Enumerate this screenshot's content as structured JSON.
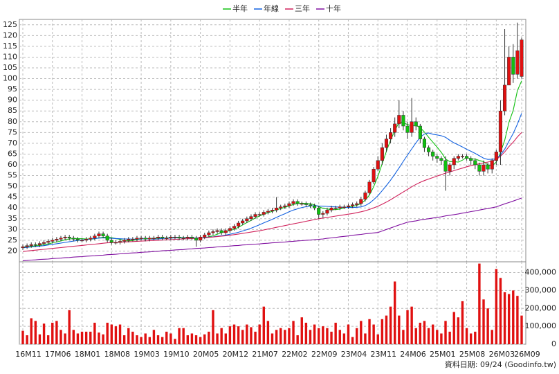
{
  "chart_data": [
    {
      "type": "candlestick",
      "up_color": "#e01010",
      "down_color": "#10c010",
      "ylim": [
        15,
        127.5
      ],
      "yticks": [
        20,
        25,
        30,
        35,
        40,
        45,
        50,
        55,
        60,
        65,
        70,
        75,
        80,
        85,
        90,
        95,
        100,
        105,
        110,
        115,
        120,
        125
      ],
      "grid": true,
      "open": [
        21.5,
        22,
        22.5,
        23,
        22.8,
        23.5,
        24,
        24.5,
        25,
        25.5,
        26,
        26.5,
        26,
        25.5,
        25,
        25,
        25.5,
        26,
        27,
        28,
        27,
        25,
        24,
        24,
        24.5,
        25,
        25.5,
        25.5,
        26,
        26,
        25.5,
        26,
        26,
        26.5,
        26,
        26,
        26.5,
        26.5,
        26,
        26,
        26.5,
        26,
        25,
        26.5,
        27.5,
        28.5,
        29,
        29.5,
        28.5,
        29.5,
        30.5,
        31.5,
        33,
        34,
        35,
        36,
        37,
        37,
        38,
        38.5,
        39,
        40,
        40.5,
        41,
        42,
        43,
        42,
        42,
        41.5,
        41,
        40,
        37,
        37.5,
        39,
        40,
        40,
        40.5,
        40.5,
        41,
        41.5,
        42,
        44,
        47,
        52,
        58,
        62,
        68,
        72,
        75,
        79,
        83,
        78,
        75,
        80,
        78,
        72,
        68,
        66,
        64,
        63,
        62,
        57,
        60,
        63,
        64,
        64,
        63,
        62,
        60,
        57,
        60,
        58,
        62,
        66,
        85,
        97,
        110,
        102,
        101
      ],
      "high": [
        23,
        23.5,
        24,
        24,
        24.5,
        25,
        25.5,
        26,
        26.5,
        27,
        27.5,
        27.5,
        27,
        26.5,
        26,
        26.5,
        27,
        28,
        29,
        29,
        28,
        26,
        25,
        25.5,
        26,
        26.5,
        26.5,
        27,
        27,
        27,
        27,
        27,
        27.5,
        27.5,
        27,
        27.5,
        27.5,
        27.5,
        27,
        27.5,
        27.5,
        27,
        27.5,
        28.5,
        29.5,
        30,
        30.5,
        30.5,
        30.5,
        31.5,
        32.5,
        34,
        35,
        36,
        37,
        38,
        38,
        39,
        39.5,
        40,
        45,
        41.5,
        42,
        43,
        44,
        44,
        43,
        43,
        42.5,
        42,
        41,
        38.5,
        40,
        41,
        41,
        41.5,
        41.5,
        42,
        42.5,
        43,
        45,
        48,
        53,
        59,
        64,
        70,
        74,
        77,
        82,
        90,
        85,
        80,
        91,
        82,
        79,
        73,
        69,
        67,
        65,
        64,
        64,
        61,
        64,
        65,
        65,
        65,
        64,
        63,
        61,
        62,
        61,
        63,
        67,
        90,
        123,
        115,
        116,
        126,
        119
      ],
      "low": [
        20.5,
        21,
        21.5,
        21.8,
        21.8,
        22.5,
        23,
        23.5,
        24,
        24.5,
        25,
        25,
        24.5,
        24,
        24,
        24,
        24.5,
        25,
        26,
        26,
        24,
        23,
        23,
        23,
        23.5,
        24,
        24.5,
        24.5,
        25,
        24.5,
        24.5,
        25,
        25,
        25,
        25,
        25,
        25.5,
        25,
        25,
        25,
        25,
        22,
        24,
        25.5,
        26.5,
        27.5,
        28,
        27.5,
        27.5,
        28.5,
        29.5,
        30.5,
        32,
        33,
        34,
        35,
        36,
        36,
        37,
        37.5,
        38,
        39,
        39.5,
        40,
        41,
        41,
        41,
        40.5,
        40,
        39,
        35,
        35.5,
        36.5,
        38,
        39,
        39,
        39.5,
        39.5,
        40,
        40.5,
        41,
        43,
        46,
        51,
        57,
        60,
        66,
        70,
        73,
        77,
        76,
        72,
        73,
        76,
        70,
        66,
        64,
        62,
        61,
        60,
        48,
        55,
        58,
        62,
        63,
        62,
        60,
        58,
        55,
        55,
        56,
        56,
        60,
        60,
        83,
        97,
        98,
        100,
        100
      ],
      "close": [
        22,
        22.5,
        23,
        22.8,
        23.5,
        24,
        24.5,
        25,
        25.5,
        26,
        26.5,
        26,
        25.5,
        25,
        25,
        25.5,
        26,
        27,
        28,
        27,
        25,
        24,
        24,
        24.5,
        25,
        25.5,
        25.5,
        26,
        26,
        25.5,
        26,
        26,
        26.5,
        26,
        26,
        26.5,
        26.5,
        26,
        26,
        26.5,
        26,
        25,
        26.5,
        27.5,
        28.5,
        29,
        29.5,
        28.5,
        29.5,
        30.5,
        31.5,
        33,
        34,
        35,
        36,
        37,
        37,
        38,
        38.5,
        39,
        40,
        40.5,
        41,
        42,
        43,
        42,
        42,
        41.5,
        41,
        40,
        37,
        37.5,
        39,
        40,
        40,
        40.5,
        40.5,
        41,
        41.5,
        42,
        44,
        47,
        52,
        58,
        62,
        68,
        72,
        75,
        79,
        83,
        78,
        75,
        80,
        78,
        72,
        68,
        66,
        64,
        63,
        62,
        57,
        60,
        63,
        64,
        64,
        63,
        62,
        60,
        57,
        60,
        58,
        62,
        66,
        85,
        97,
        110,
        102,
        113,
        118
      ],
      "series": [
        {
          "name": "半年",
          "color": "#10c010",
          "values": [
            21.8,
            22,
            22.2,
            22.4,
            22.6,
            23,
            23.3,
            23.8,
            24.2,
            24.7,
            25.2,
            25.6,
            25.8,
            25.8,
            25.7,
            25.6,
            25.5,
            25.7,
            26.1,
            26.4,
            26.4,
            26.2,
            25.8,
            25.4,
            24.8,
            24.7,
            24.9,
            25.3,
            25.6,
            25.7,
            25.8,
            25.9,
            26,
            26,
            26.1,
            26.2,
            26.3,
            26.3,
            26.2,
            26.3,
            26.2,
            26,
            26,
            26.2,
            26.6,
            27.1,
            27.8,
            28.6,
            29,
            29.5,
            30.1,
            31,
            32.1,
            33.2,
            34.2,
            35.3,
            36.3,
            37.1,
            37.8,
            38.4,
            39.1,
            39.7,
            40.3,
            40.9,
            41.6,
            42,
            42.2,
            42.1,
            42,
            41.4,
            40.6,
            39.8,
            39.5,
            39.2,
            39.2,
            39.5,
            40,
            40.4,
            40.7,
            41.2,
            42,
            43.6,
            46,
            49.8,
            54.7,
            60.5,
            66.3,
            71.5,
            75.8,
            79.8,
            79.5,
            78.7,
            78.2,
            78.3,
            77.3,
            75.2,
            72.8,
            70.5,
            68.2,
            65.8,
            62.7,
            61.5,
            61.5,
            61.3,
            62.2,
            63.5,
            62.7,
            62.7,
            62,
            61.5,
            60,
            59.5,
            61.3,
            65.7,
            71.5,
            79.8,
            85.3,
            94.5,
            99
          ]
        },
        {
          "name": "年線",
          "color": "#1060e0",
          "values": [
            21.5,
            21.7,
            21.9,
            22.1,
            22.3,
            22.5,
            22.8,
            23.1,
            23.4,
            23.7,
            24,
            24.3,
            24.6,
            24.9,
            25.1,
            25.3,
            25.6,
            25.8,
            26,
            26.1,
            26,
            25.9,
            25.8,
            25.7,
            25.6,
            25.6,
            25.5,
            25.5,
            25.6,
            25.7,
            25.6,
            25.5,
            25.6,
            25.8,
            26,
            26,
            26.1,
            26.1,
            26.1,
            26.1,
            26.1,
            26.1,
            26.1,
            26.2,
            26.4,
            26.6,
            26.9,
            27.1,
            27.4,
            27.8,
            28.2,
            28.7,
            29.3,
            29.9,
            30.6,
            31.4,
            32.2,
            33.1,
            33.9,
            34.7,
            35.6,
            36.5,
            37.3,
            38.2,
            39,
            39.6,
            40.2,
            40.6,
            40.9,
            41.1,
            40.9,
            40.8,
            40.7,
            40.6,
            40.5,
            40.4,
            40.2,
            40.2,
            40.2,
            40.3,
            40.5,
            41.1,
            42.2,
            43.8,
            45.7,
            48,
            50.4,
            52.9,
            55.7,
            58.6,
            61.6,
            64.5,
            67.4,
            70.2,
            72.8,
            74.3,
            74.8,
            74.2,
            73.9,
            73.5,
            72.8,
            71.4,
            70.2,
            69.3,
            68.3,
            67.2,
            66.3,
            65.3,
            64.2,
            63.1,
            62.5,
            62.6,
            62.8,
            64.6,
            67.3,
            71,
            74.6,
            78.9,
            83.9
          ]
        },
        {
          "name": "三年",
          "color": "#d0205a",
          "values": [
            19.8,
            20,
            20.2,
            20.4,
            20.6,
            20.8,
            21,
            21.2,
            21.4,
            21.6,
            21.8,
            22,
            22.2,
            22.4,
            22.6,
            22.8,
            23,
            23.2,
            23.4,
            23.6,
            23.8,
            23.9,
            24,
            24.1,
            24.2,
            24.3,
            24.4,
            24.5,
            24.6,
            24.7,
            24.8,
            24.9,
            25,
            25.1,
            25.2,
            25.3,
            25.4,
            25.5,
            25.6,
            25.7,
            25.8,
            25.9,
            26,
            26.1,
            26.3,
            26.5,
            26.7,
            26.9,
            27.1,
            27.3,
            27.6,
            27.9,
            28.2,
            28.5,
            28.8,
            29.1,
            29.4,
            29.8,
            30.2,
            30.6,
            31,
            31.4,
            31.8,
            32.2,
            32.6,
            33,
            33.4,
            33.8,
            34.2,
            34.6,
            35,
            35.3,
            35.6,
            35.9,
            36.2,
            36.5,
            36.8,
            37.1,
            37.4,
            37.8,
            38.2,
            38.7,
            39.3,
            40,
            40.8,
            41.7,
            42.7,
            43.8,
            45,
            46.2,
            47.4,
            48.6,
            49.8,
            50.9,
            51.9,
            52.7,
            53.4,
            54.1,
            54.8,
            55.5,
            56.1,
            56.7,
            57.3,
            57.9,
            58.5,
            59.1,
            59.6,
            60.1,
            60.5,
            60.9,
            61.3,
            61.8,
            62.5,
            64,
            66,
            68.5,
            70.5,
            73,
            75
          ]
        },
        {
          "name": "十年",
          "color": "#8010a0",
          "values": [
            15.5,
            15.6,
            15.8,
            15.9,
            16.1,
            16.2,
            16.3,
            16.5,
            16.6,
            16.7,
            16.9,
            17,
            17.2,
            17.3,
            17.4,
            17.6,
            17.7,
            17.8,
            18,
            18.1,
            18.3,
            18.4,
            18.5,
            18.7,
            18.8,
            19,
            19.1,
            19.2,
            19.4,
            19.5,
            19.6,
            19.8,
            19.9,
            20.1,
            20.2,
            20.3,
            20.5,
            20.6,
            20.7,
            20.9,
            21,
            21.2,
            21.3,
            21.4,
            21.6,
            21.7,
            21.9,
            22,
            22.2,
            22.3,
            22.5,
            22.6,
            22.8,
            22.9,
            23.1,
            23.2,
            23.3,
            23.5,
            23.6,
            23.8,
            23.9,
            24.1,
            24.2,
            24.4,
            24.5,
            24.7,
            24.8,
            25,
            25.1,
            25.3,
            25.4,
            25.6,
            25.9,
            26.1,
            26.3,
            26.6,
            26.8,
            27,
            27.3,
            27.5,
            27.7,
            28,
            28.2,
            28.4,
            28.6,
            29.3,
            30,
            30.7,
            31.4,
            32.1,
            32.7,
            33.4,
            33.7,
            34,
            34.4,
            34.7,
            35,
            35.3,
            35.6,
            35.9,
            36.3,
            36.6,
            36.9,
            37.2,
            37.6,
            37.9,
            38.3,
            38.6,
            39,
            39.4,
            39.7,
            40.1,
            40.5,
            41.2,
            41.9,
            42.5,
            43.2,
            43.9,
            44.6
          ]
        }
      ]
    },
    {
      "type": "bar",
      "color": "#e01010",
      "ylim": [
        0,
        460000
      ],
      "yticks": [
        0,
        {
          "value": 100000,
          "label": "100,000"
        },
        {
          "value": 200000,
          "label": "200,000"
        },
        {
          "value": 300000,
          "label": "300,000"
        },
        {
          "value": 400000,
          "label": "400,000"
        }
      ],
      "grid": true,
      "categories": [
        "16M11",
        null,
        null,
        null,
        null,
        null,
        null,
        "17M06",
        null,
        null,
        null,
        null,
        null,
        null,
        "18M01",
        null,
        null,
        null,
        null,
        null,
        null,
        "18M08",
        null,
        null,
        null,
        null,
        null,
        null,
        "19M03",
        null,
        null,
        null,
        null,
        null,
        null,
        "19M10",
        null,
        null,
        null,
        null,
        null,
        null,
        "20M05",
        null,
        null,
        null,
        null,
        null,
        null,
        "20M12",
        null,
        null,
        null,
        null,
        null,
        null,
        "21M07",
        null,
        null,
        null,
        null,
        null,
        null,
        "22M02",
        null,
        null,
        null,
        null,
        null,
        null,
        "22M09",
        null,
        null,
        null,
        null,
        null,
        null,
        "23M04",
        null,
        null,
        null,
        null,
        null,
        null,
        "23M11",
        null,
        null,
        null,
        null,
        null,
        null,
        "24M06",
        null,
        null,
        null,
        null,
        null,
        null,
        "25M01",
        null,
        null,
        null,
        null,
        null,
        null,
        "25M08",
        null,
        null,
        null,
        null,
        null,
        null,
        "26M03",
        null,
        null,
        null,
        null,
        null,
        "26M09"
      ],
      "values": [
        75000,
        50000,
        145000,
        130000,
        55000,
        115000,
        50000,
        120000,
        130000,
        80000,
        60000,
        190000,
        80000,
        60000,
        70000,
        70000,
        70000,
        120000,
        65000,
        55000,
        120000,
        110000,
        100000,
        110000,
        50000,
        90000,
        70000,
        50000,
        40000,
        60000,
        40000,
        80000,
        50000,
        40000,
        70000,
        60000,
        30000,
        90000,
        90000,
        50000,
        60000,
        50000,
        40000,
        55000,
        70000,
        190000,
        60000,
        90000,
        60000,
        100000,
        110000,
        100000,
        80000,
        110000,
        95000,
        70000,
        110000,
        210000,
        130000,
        60000,
        80000,
        90000,
        80000,
        90000,
        130000,
        50000,
        150000,
        120000,
        80000,
        110000,
        90000,
        100000,
        90000,
        70000,
        120000,
        80000,
        60000,
        110000,
        40000,
        90000,
        130000,
        60000,
        140000,
        110000,
        55000,
        140000,
        160000,
        210000,
        350000,
        160000,
        80000,
        190000,
        210000,
        90000,
        120000,
        130000,
        90000,
        110000,
        80000,
        60000,
        130000,
        70000,
        180000,
        150000,
        240000,
        90000,
        60000,
        70000,
        450000,
        250000,
        200000,
        80000,
        420000,
        370000,
        290000,
        280000,
        300000,
        270000,
        160000
      ]
    }
  ],
  "note": "資料日期: 09/24 (Goodinfo.tw)"
}
